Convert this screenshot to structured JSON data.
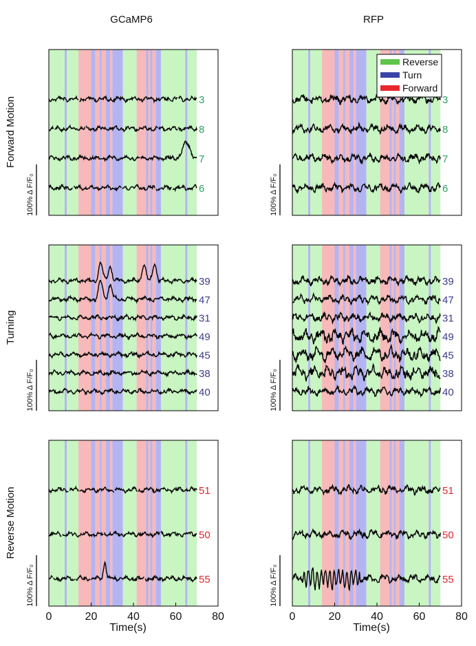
{
  "figure": {
    "column_titles": [
      "GCaMP6",
      "RFP"
    ],
    "row_titles": [
      "Forward Motion",
      "Turning",
      "Reverse Motion"
    ],
    "xlabel": "Time(s)",
    "x_ticks": [
      0,
      20,
      40,
      60,
      80
    ],
    "scale_bar_label": "100% Δ F/F₀"
  },
  "legend": {
    "entries": [
      {
        "label": "Reverse",
        "color": "#5ec44a"
      },
      {
        "label": "Turn",
        "color": "#3b44a8"
      },
      {
        "label": "Forward",
        "color": "#e8262b"
      }
    ]
  },
  "colors": {
    "reverse_shade": "#c8f5c2",
    "turn_shade": "#b4b4f2",
    "forward_shade": "#f7b9b9",
    "trace": "#000000",
    "forward_label": "#2e9e63",
    "turning_label": "#3a3d8c",
    "reverse_label": "#e0262b"
  },
  "chart_data": {
    "type": "line",
    "xlim": [
      0,
      80
    ],
    "data_extent_s": 70,
    "behavior_segments": [
      {
        "state": "reverse",
        "start": 0,
        "end": 7.5
      },
      {
        "state": "turn",
        "start": 7.5,
        "end": 8.5
      },
      {
        "state": "reverse",
        "start": 8.5,
        "end": 14
      },
      {
        "state": "forward",
        "start": 14,
        "end": 20
      },
      {
        "state": "turn",
        "start": 20,
        "end": 22
      },
      {
        "state": "forward",
        "start": 22,
        "end": 24
      },
      {
        "state": "turn",
        "start": 24,
        "end": 25
      },
      {
        "state": "forward",
        "start": 25,
        "end": 27
      },
      {
        "state": "turn",
        "start": 27,
        "end": 29
      },
      {
        "state": "forward",
        "start": 29,
        "end": 30
      },
      {
        "state": "turn",
        "start": 30,
        "end": 35
      },
      {
        "state": "reverse",
        "start": 35,
        "end": 41.5
      },
      {
        "state": "forward",
        "start": 41.5,
        "end": 46
      },
      {
        "state": "turn",
        "start": 46,
        "end": 47
      },
      {
        "state": "forward",
        "start": 47,
        "end": 48
      },
      {
        "state": "turn",
        "start": 48,
        "end": 49
      },
      {
        "state": "forward",
        "start": 49,
        "end": 50.5
      },
      {
        "state": "turn",
        "start": 50.5,
        "end": 53
      },
      {
        "state": "reverse",
        "start": 53,
        "end": 64.5
      },
      {
        "state": "turn",
        "start": 64.5,
        "end": 65.5
      },
      {
        "state": "reverse",
        "start": 65.5,
        "end": 70
      }
    ],
    "panels": [
      {
        "row": "Forward Motion",
        "column": "GCaMP6",
        "neurons": [
          "3",
          "8",
          "7",
          "6"
        ],
        "label_color": "#2e9e63"
      },
      {
        "row": "Forward Motion",
        "column": "RFP",
        "neurons": [
          "3",
          "8",
          "7",
          "6"
        ],
        "label_color": "#2e9e63"
      },
      {
        "row": "Turning",
        "column": "GCaMP6",
        "neurons": [
          "39",
          "47",
          "31",
          "49",
          "45",
          "38",
          "40"
        ],
        "label_color": "#3a3d8c"
      },
      {
        "row": "Turning",
        "column": "RFP",
        "neurons": [
          "39",
          "47",
          "31",
          "49",
          "45",
          "38",
          "40"
        ],
        "label_color": "#3a3d8c"
      },
      {
        "row": "Reverse Motion",
        "column": "GCaMP6",
        "neurons": [
          "51",
          "50",
          "55"
        ],
        "label_color": "#e0262b"
      },
      {
        "row": "Reverse Motion",
        "column": "RFP",
        "neurons": [
          "51",
          "50",
          "55"
        ],
        "label_color": "#e0262b"
      }
    ]
  }
}
